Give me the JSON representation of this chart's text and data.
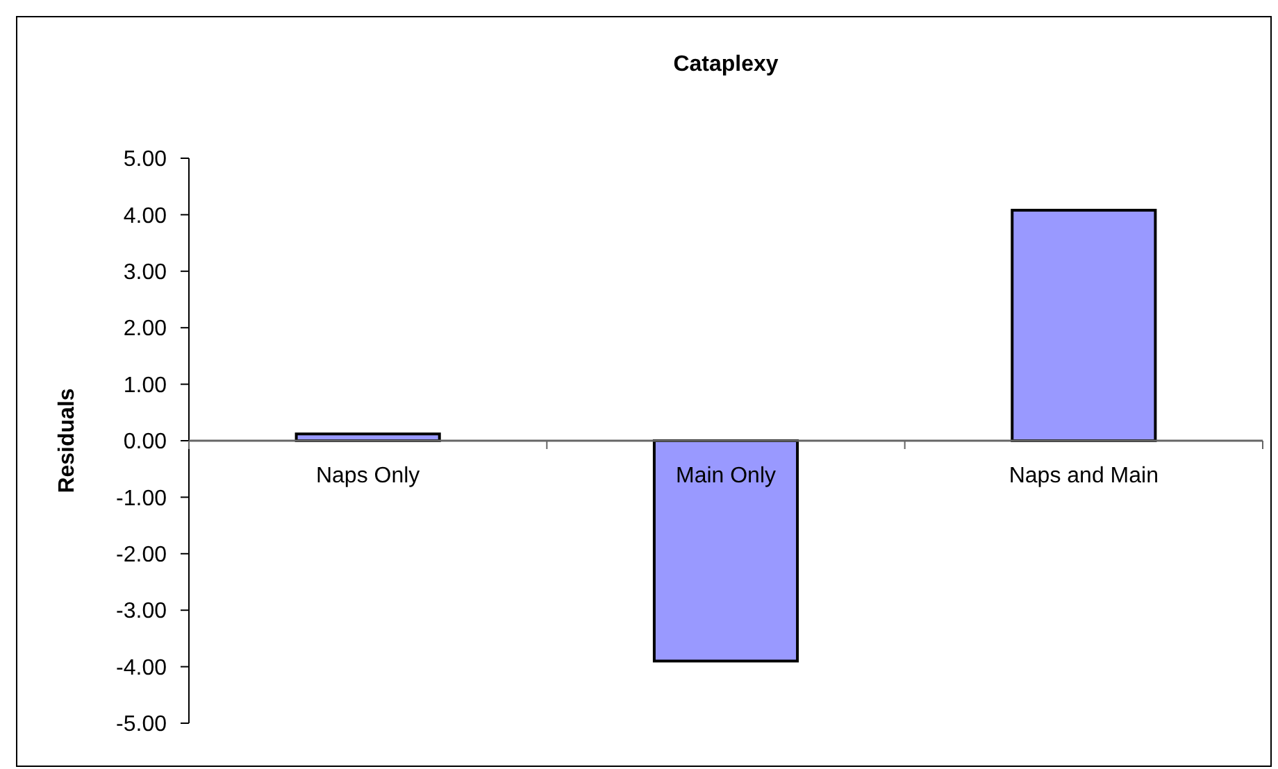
{
  "chart_data": {
    "type": "bar",
    "title": "Cataplexy",
    "ylabel": "Residuals",
    "categories": [
      "Naps Only",
      "Main Only",
      "Naps and Main"
    ],
    "values": [
      0.12,
      -3.9,
      4.08
    ],
    "color": "#9999ff",
    "ylim": [
      -5,
      5
    ],
    "yticks": [
      {
        "value": 5,
        "label": "5.00"
      },
      {
        "value": 4,
        "label": "4.00"
      },
      {
        "value": 3,
        "label": "3.00"
      },
      {
        "value": 2,
        "label": "2.00"
      },
      {
        "value": 1,
        "label": "1.00"
      },
      {
        "value": 0,
        "label": "0.00"
      },
      {
        "value": -1,
        "label": "-1.00"
      },
      {
        "value": -2,
        "label": "-2.00"
      },
      {
        "value": -3,
        "label": "-3.00"
      },
      {
        "value": -4,
        "label": "-4.00"
      },
      {
        "value": -5,
        "label": "-5.00"
      }
    ],
    "grid": false
  }
}
